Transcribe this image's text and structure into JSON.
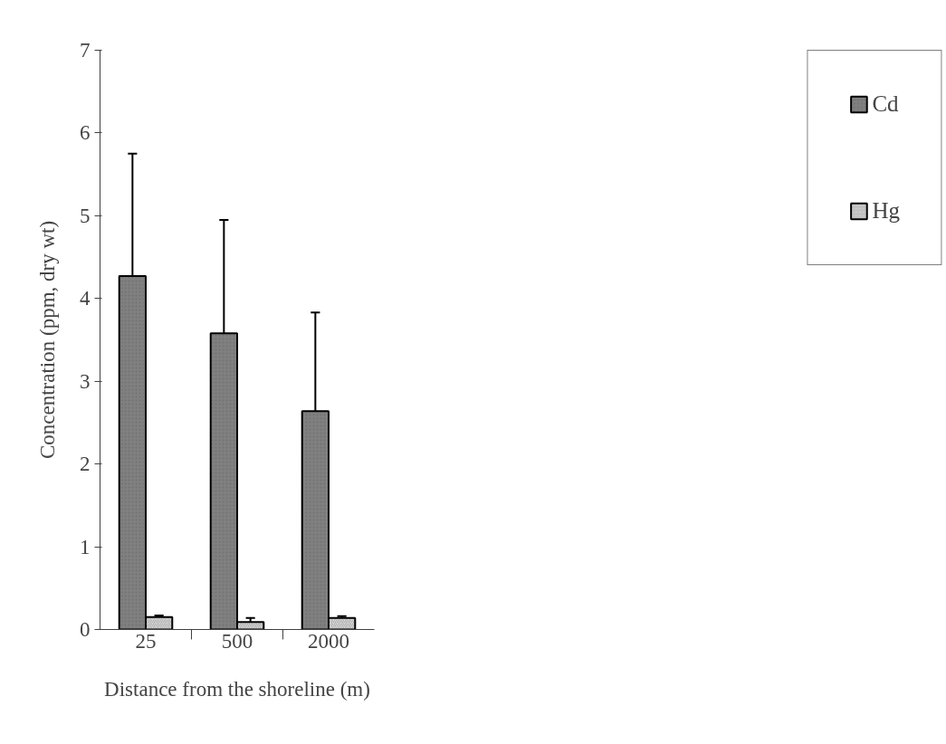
{
  "chart_data": {
    "type": "bar",
    "xlabel": "Distance from the shoreline (m)",
    "ylabel": "Concentration (ppm, dry wt)",
    "categories": [
      "25",
      "500",
      "2000"
    ],
    "series": [
      {
        "name": "Cd",
        "color": "#808080",
        "values": [
          4.27,
          3.58,
          2.64
        ],
        "errors": [
          [
            4.27,
            5.75
          ],
          [
            3.58,
            4.95
          ],
          [
            2.64,
            3.83
          ]
        ]
      },
      {
        "name": "Hg",
        "color": "#d9d9d9",
        "values": [
          0.15,
          0.09,
          0.14
        ],
        "errors": [
          [
            0.15,
            0.17
          ],
          [
            0.09,
            0.14
          ],
          [
            0.14,
            0.16
          ]
        ]
      }
    ],
    "ylim": [
      0,
      7
    ],
    "yticks": [
      0,
      1,
      2,
      3,
      4,
      5,
      6,
      7
    ],
    "grid": false,
    "legend": "right"
  }
}
